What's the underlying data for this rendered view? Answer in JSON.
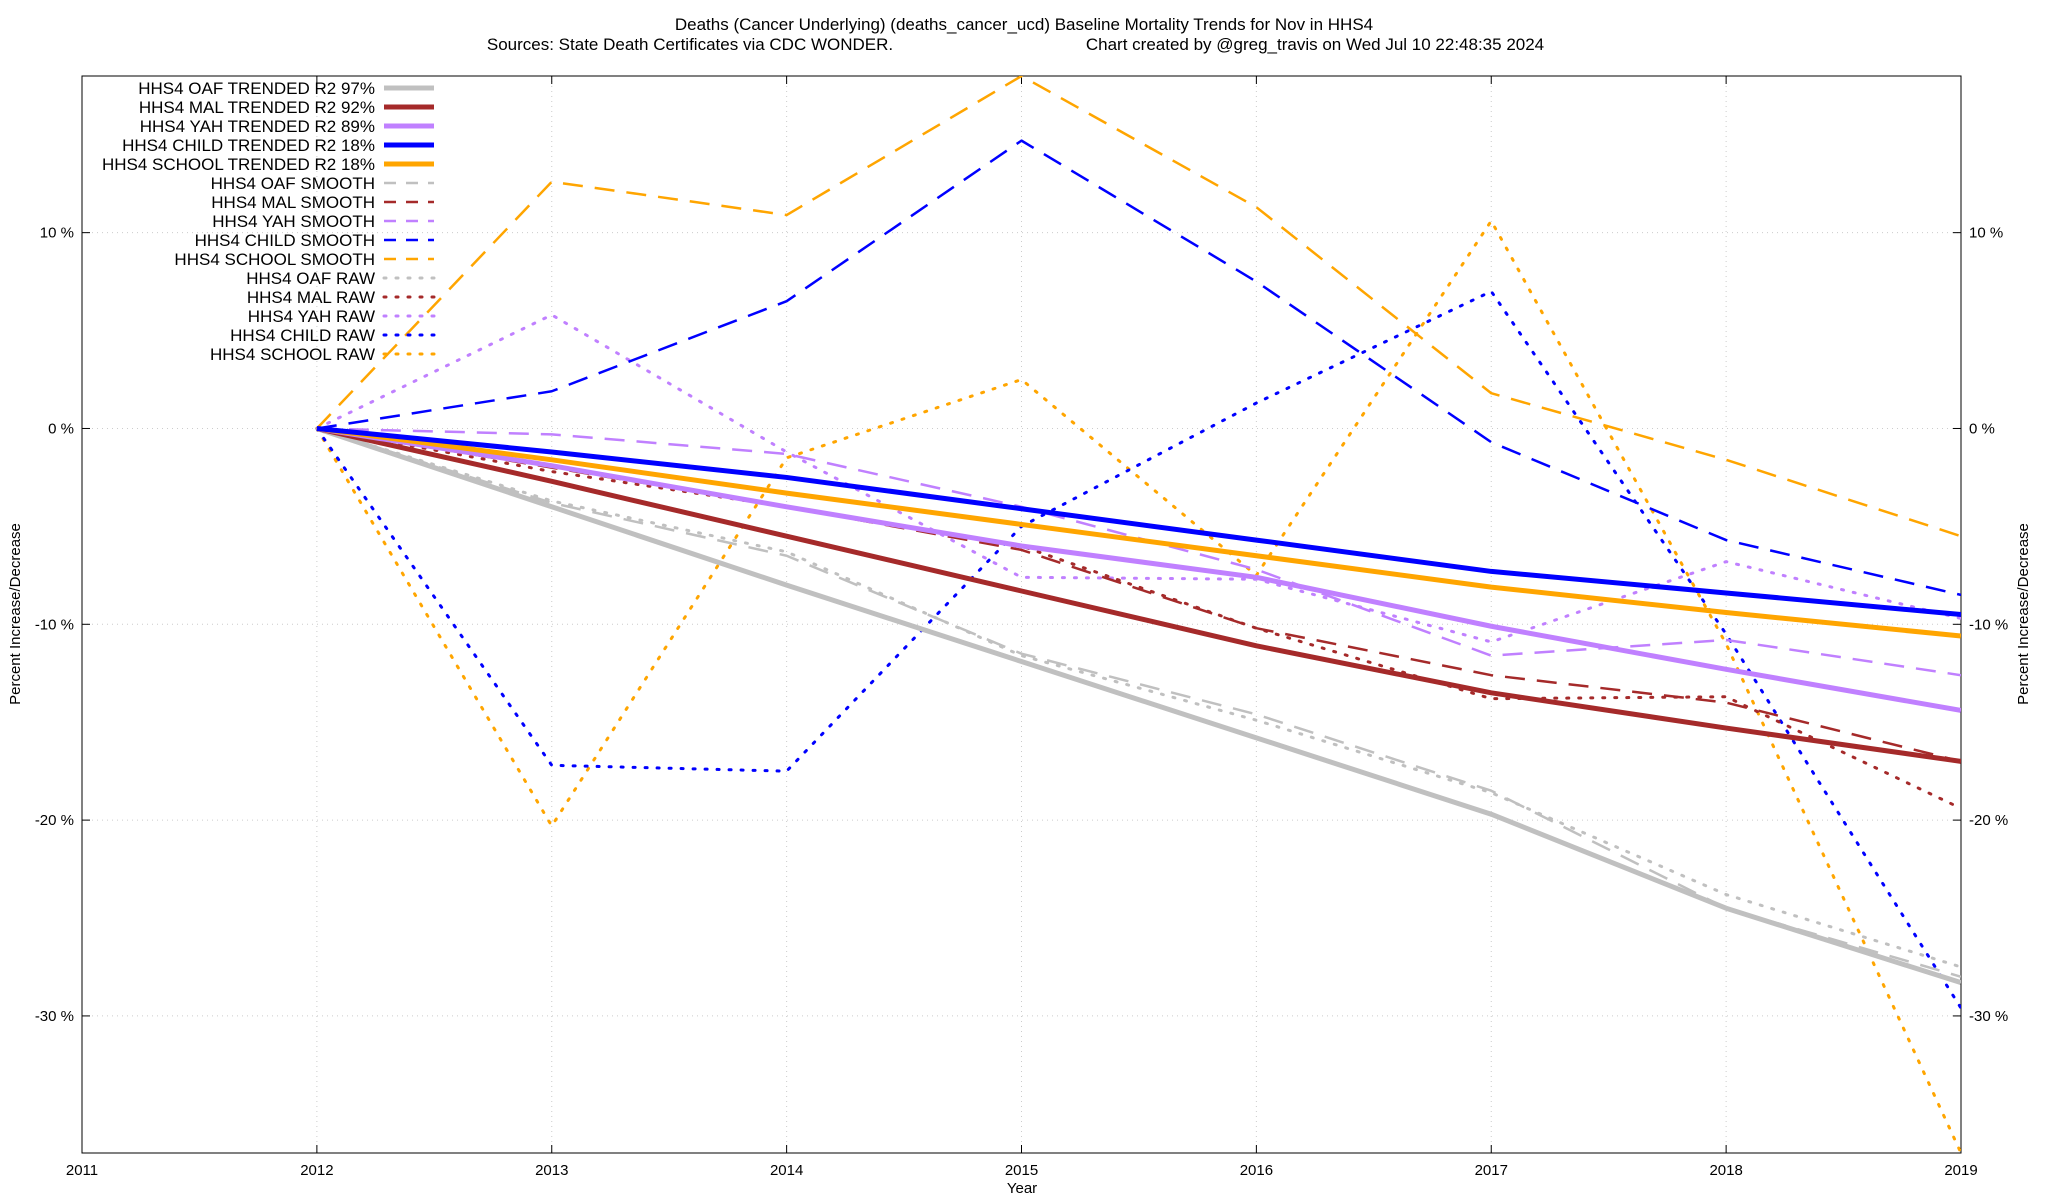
{
  "chart_data": {
    "type": "line",
    "title": "Deaths (Cancer Underlying) (deaths_cancer_ucd)  Baseline Mortality Trends for Nov in HHS4",
    "subtitle_left": "Sources: State Death Certificates via CDC WONDER.",
    "subtitle_right": "Chart created by @greg_travis on Wed Jul 10 22:48:35 2024",
    "xlabel": "Year",
    "ylabel": "Percent Increase/Decrease",
    "y2label": "Percent Increase/Decrease",
    "xlim": [
      2011,
      2019
    ],
    "ylim": [
      -37,
      18
    ],
    "grid": true,
    "legend_position": "top-left",
    "x_ticks": [
      "2011",
      "2012",
      "2013",
      "2014",
      "2015",
      "2016",
      "2017",
      "2018",
      "2019"
    ],
    "y_ticks": [
      {
        "value": 10,
        "label": "10 %"
      },
      {
        "value": 0,
        "label": "0 %"
      },
      {
        "value": -10,
        "label": "-10 %"
      },
      {
        "value": -20,
        "label": "-20 %"
      },
      {
        "value": -30,
        "label": "-30 %"
      }
    ],
    "x": [
      2012,
      2013,
      2014,
      2015,
      2016,
      2017,
      2018,
      2019
    ],
    "series": [
      {
        "name": "HHS4 OAF TRENDED R2  97%",
        "color": "#c0c0c0",
        "style": "solid",
        "values": [
          0,
          -4,
          -8,
          -11.9,
          -15.8,
          -19.7,
          -24.5,
          -28.3
        ]
      },
      {
        "name": "HHS4 MAL TRENDED R2  92%",
        "color": "#a52a2a",
        "style": "solid",
        "values": [
          0,
          -2.7,
          -5.5,
          -8.3,
          -11.1,
          -13.5,
          -15.3,
          -17
        ]
      },
      {
        "name": "HHS4 YAH TRENDED R2  89%",
        "color": "#c080ff",
        "style": "solid",
        "values": [
          0,
          -1.9,
          -4,
          -6,
          -7.6,
          -10.1,
          -12.3,
          -14.4
        ]
      },
      {
        "name": "HHS4 CHILD TRENDED R2  18%",
        "color": "#0000ff",
        "style": "solid",
        "values": [
          0,
          -1.2,
          -2.5,
          -4.1,
          -5.7,
          -7.3,
          -8.4,
          -9.5
        ]
      },
      {
        "name": "HHS4 SCHOOL TRENDED R2  18%",
        "color": "#ffa500",
        "style": "solid",
        "values": [
          0,
          -1.6,
          -3.3,
          -4.9,
          -6.5,
          -8.1,
          -9.4,
          -10.6
        ]
      },
      {
        "name": "HHS4 OAF SMOOTH",
        "color": "#c0c0c0",
        "style": "dashed",
        "values": [
          0,
          -3.8,
          -6.5,
          -11.5,
          -14.6,
          -18.5,
          -24.5,
          -28
        ]
      },
      {
        "name": "HHS4 MAL SMOOTH",
        "color": "#a52a2a",
        "style": "dashed",
        "values": [
          0,
          -2,
          -4,
          -6.2,
          -10.2,
          -12.6,
          -14,
          -17
        ]
      },
      {
        "name": "HHS4 YAH SMOOTH",
        "color": "#c080ff",
        "style": "dashed",
        "values": [
          0,
          -0.3,
          -1.3,
          -4,
          -7.2,
          -11.6,
          -10.8,
          -12.6
        ]
      },
      {
        "name": "HHS4 CHILD SMOOTH",
        "color": "#0000ff",
        "style": "dashed",
        "values": [
          0,
          1.9,
          6.5,
          14.7,
          7.5,
          -0.7,
          -5.7,
          -8.5
        ]
      },
      {
        "name": "HHS4 SCHOOL SMOOTH",
        "color": "#ffa500",
        "style": "dashed",
        "values": [
          0,
          12.6,
          10.9,
          18,
          11.3,
          1.8,
          -1.6,
          -5.5
        ]
      },
      {
        "name": "HHS4 OAF RAW",
        "color": "#c0c0c0",
        "style": "dotted",
        "values": [
          0,
          -3.7,
          -6.3,
          -11.6,
          -14.9,
          -18.6,
          -23.8,
          -27.5
        ]
      },
      {
        "name": "HHS4 MAL RAW",
        "color": "#a52a2a",
        "style": "dotted",
        "values": [
          0,
          -2.2,
          -4,
          -6,
          -10.2,
          -13.8,
          -13.7,
          -19.4
        ]
      },
      {
        "name": "HHS4 YAH RAW",
        "color": "#c080ff",
        "style": "dotted",
        "values": [
          0,
          5.8,
          -1.2,
          -7.6,
          -7.7,
          -10.9,
          -6.8,
          -9.7
        ]
      },
      {
        "name": "HHS4 CHILD RAW",
        "color": "#0000ff",
        "style": "dotted",
        "values": [
          0,
          -17.2,
          -17.5,
          -5,
          1.3,
          7,
          -10.5,
          -29.6
        ]
      },
      {
        "name": "HHS4 SCHOOL RAW",
        "color": "#ffa500",
        "style": "dotted",
        "values": [
          0,
          -20.3,
          -1.5,
          2.5,
          -7.5,
          10.6,
          -11,
          -37
        ]
      }
    ]
  }
}
